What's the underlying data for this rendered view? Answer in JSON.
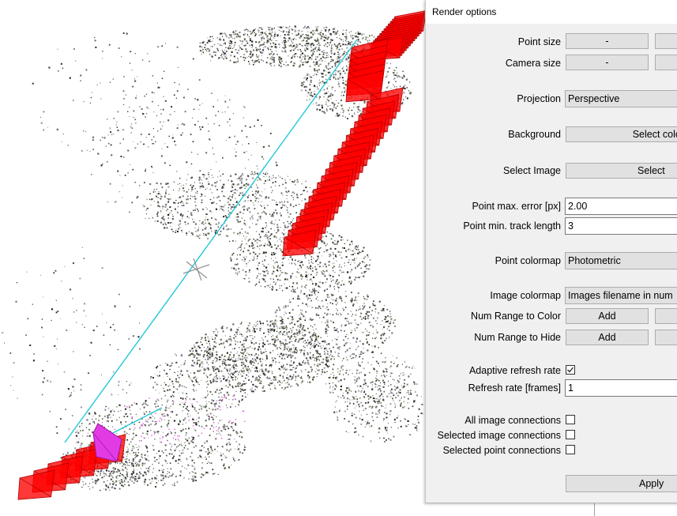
{
  "window": {
    "title": "Render options"
  },
  "point_size": {
    "label": "Point size",
    "decrease_label": "-"
  },
  "camera_size": {
    "label": "Camera size",
    "decrease_label": "-"
  },
  "projection": {
    "label": "Projection",
    "value": "Perspective"
  },
  "background": {
    "label": "Background",
    "button_label": "Select color"
  },
  "select_image": {
    "label": "Select Image",
    "button_label": "Select"
  },
  "point_max_error": {
    "label": "Point max. error [px]",
    "value": "2.00"
  },
  "point_min_track": {
    "label": "Point min. track length",
    "value": "3"
  },
  "point_colormap": {
    "label": "Point colormap",
    "value": "Photometric"
  },
  "image_colormap": {
    "label": "Image colormap",
    "value": "Images filename in num"
  },
  "num_range_color": {
    "label": "Num Range to Color",
    "button_label": "Add"
  },
  "num_range_hide": {
    "label": "Num Range to Hide",
    "button_label": "Add"
  },
  "adaptive_refresh": {
    "label": "Adaptive refresh rate",
    "checked": true
  },
  "refresh_rate": {
    "label": "Refresh rate [frames]",
    "value": "1"
  },
  "all_image_connections": {
    "label": "All image connections",
    "checked": false
  },
  "selected_image_connections": {
    "label": "Selected image connections",
    "checked": false
  },
  "selected_point_connections": {
    "label": "Selected point connections",
    "checked": false
  },
  "apply": {
    "label": "Apply"
  },
  "colors": {
    "camera_red": "#ff0000",
    "camera_selected": "#e600e6",
    "connection_line": "#22c8d8"
  }
}
